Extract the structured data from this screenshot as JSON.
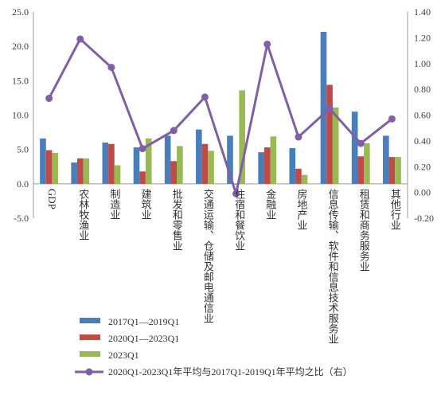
{
  "chart_data": {
    "type": "bar",
    "categories": [
      "GDP",
      "农林牧渔业",
      "制造业",
      "建筑业",
      "批发和零售业",
      "交通运输、仓储及邮电通信业",
      "住宿和餐饮业",
      "金融业",
      "房地产业",
      "信息传输、软件和信息技术服务业",
      "租赁和商务服务业",
      "其他行业"
    ],
    "series": [
      {
        "name": "2017Q1—2019Q1",
        "kind": "bar",
        "axis": "left",
        "color": "#4a7ebb",
        "values": [
          6.6,
          3.1,
          6.0,
          5.3,
          7.0,
          7.9,
          7.0,
          4.6,
          5.2,
          22.1,
          10.5,
          7.0
        ]
      },
      {
        "name": "2020Q1—2023Q1",
        "kind": "bar",
        "axis": "left",
        "color": "#be4b48",
        "values": [
          4.9,
          3.7,
          5.8,
          1.8,
          3.3,
          5.8,
          -0.1,
          5.3,
          2.2,
          14.4,
          4.0,
          3.9
        ]
      },
      {
        "name": "2023Q1",
        "kind": "bar",
        "axis": "left",
        "color": "#98b954",
        "values": [
          4.5,
          3.7,
          2.7,
          6.6,
          5.5,
          4.8,
          13.6,
          6.9,
          1.3,
          11.1,
          5.9,
          3.9
        ]
      },
      {
        "name": "2020Q1-2023Q1年平均与2017Q1-2019Q1年平均之比（右）",
        "kind": "line",
        "axis": "right",
        "color": "#7f5fa5",
        "values": [
          0.73,
          1.19,
          0.97,
          0.34,
          0.48,
          0.74,
          -0.01,
          1.15,
          0.43,
          0.65,
          0.38,
          0.57
        ]
      }
    ],
    "ylim_left": [
      -5,
      25
    ],
    "ylim_right": [
      -0.2,
      1.4
    ],
    "yticks_left": [
      "25.0",
      "20.0",
      "15.0",
      "10.0",
      "5.0",
      "0.0",
      "-5.0"
    ],
    "yticks_right": [
      "1.40",
      "1.20",
      "1.00",
      "0.80",
      "0.60",
      "0.40",
      "0.20",
      "0.00",
      "-0.20"
    ],
    "legend_position": "bottom-left",
    "grid": false
  }
}
